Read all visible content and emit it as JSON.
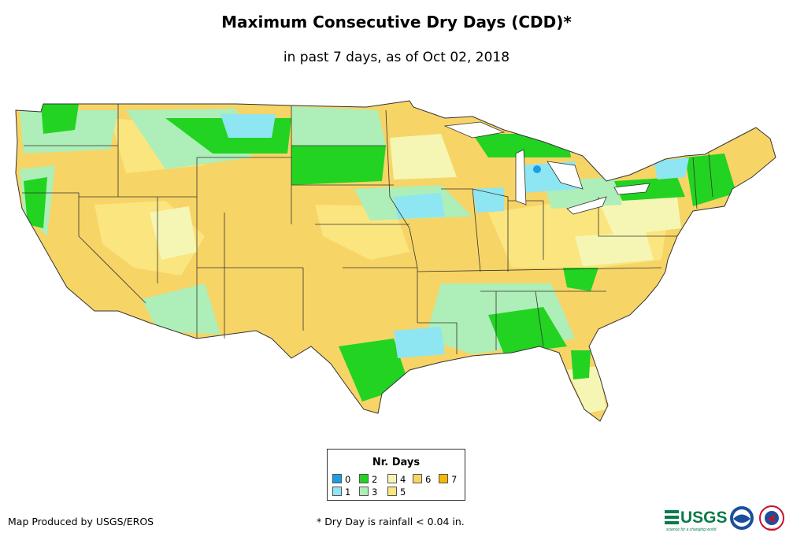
{
  "title": "Maximum Consecutive Dry Days (CDD)*",
  "subtitle": "in past 7 days, as of Oct 02, 2018",
  "legend": {
    "title": "Nr. Days",
    "items": [
      {
        "label": "0",
        "color": "#1a9ee6"
      },
      {
        "label": "1",
        "color": "#8ee6f2"
      },
      {
        "label": "2",
        "color": "#22d322"
      },
      {
        "label": "3",
        "color": "#aeeeb8"
      },
      {
        "label": "4",
        "color": "#f6f6b4"
      },
      {
        "label": "5",
        "color": "#fbe57e"
      },
      {
        "label": "6",
        "color": "#f7d466"
      },
      {
        "label": "7",
        "color": "#f5b800"
      }
    ]
  },
  "credit": "Map Produced by USGS/EROS",
  "footnote": "* Dry Day is rainfall < 0.04 in.",
  "logos": {
    "usgs": "USGS",
    "usgs_tagline": "science for a changing world",
    "noaa": "NOAA",
    "nws": "NWS"
  }
}
